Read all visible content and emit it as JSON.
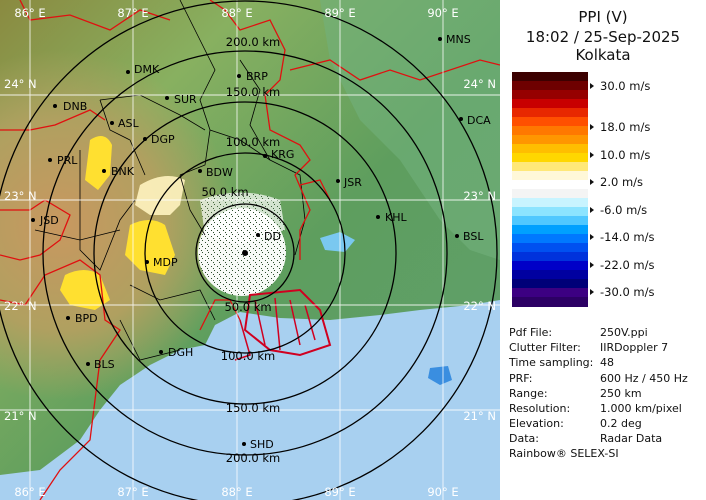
{
  "title": "PPI (V)",
  "datetime": "18:02 / 25-Sep-2025",
  "station": "Kolkata",
  "colorbar": [
    {
      "label": "30.0 m/s",
      "colors": [
        "#3c0000",
        "#6e0000",
        "#960000"
      ]
    },
    {
      "label": "18.0 m/s",
      "colors": [
        "#c80000",
        "#e82800",
        "#ff5000",
        "#ff7800"
      ]
    },
    {
      "label": "10.0 m/s",
      "colors": [
        "#ff9600",
        "#ffbe00",
        "#ffd700",
        "#ffe878"
      ]
    },
    {
      "label": "2.0 m/s",
      "colors": [
        "#fff8d8",
        "#ffffff",
        "#f4f4f4"
      ]
    },
    {
      "label": "-6.0 m/s",
      "colors": [
        "#c8f4ff",
        "#8ce4ff",
        "#50c8ff"
      ]
    },
    {
      "label": "-14.0 m/s",
      "colors": [
        "#00a0ff",
        "#0078ff",
        "#0050f0",
        "#0032dc"
      ]
    },
    {
      "label": "-22.0 m/s",
      "colors": [
        "#0000c8",
        "#0000a0",
        "#000078",
        "#3c0082"
      ]
    },
    {
      "label": "-30.0 m/s",
      "colors": [
        "#2c0064"
      ]
    }
  ],
  "info": [
    {
      "key": "Pdf File:",
      "value": "250V.ppi"
    },
    {
      "key": "Clutter Filter:",
      "value": "IIRDoppler 7"
    },
    {
      "key": "Time sampling:",
      "value": "48"
    },
    {
      "key": "PRF:",
      "value": "600 Hz / 450 Hz"
    },
    {
      "key": "Range:",
      "value": "250 km"
    },
    {
      "key": "Resolution:",
      "value": "1.000 km/pixel"
    },
    {
      "key": "Elevation:",
      "value": "0.2 deg"
    },
    {
      "key": "Data:",
      "value": "Radar Data"
    }
  ],
  "footer": "Rainbow® SELEX-SI",
  "map": {
    "lon_labels": [
      "86° E",
      "87° E",
      "88° E",
      "89° E",
      "90° E"
    ],
    "lat_labels": [
      "24° N",
      "23° N",
      "22° N",
      "21° N"
    ],
    "range_rings": [
      "50.0 km",
      "100.0 km",
      "150.0 km",
      "200.0 km"
    ],
    "stations": [
      "MNS",
      "DMK",
      "BRP",
      "DNB",
      "SUR",
      "ASL",
      "DGP",
      "PRL",
      "BNK",
      "KRG",
      "DCA",
      "BDW",
      "JSR",
      "JSD",
      "KHL",
      "BSL",
      "DD",
      "MDP",
      "BPD",
      "DGH",
      "BLS",
      "SHD"
    ],
    "colors": {
      "sea": "#a8d0f0",
      "land_low": "#6aa66a",
      "land_high": "#c8a070",
      "border_state": "#e01010",
      "border_district": "#000000",
      "ring": "#000000"
    }
  }
}
